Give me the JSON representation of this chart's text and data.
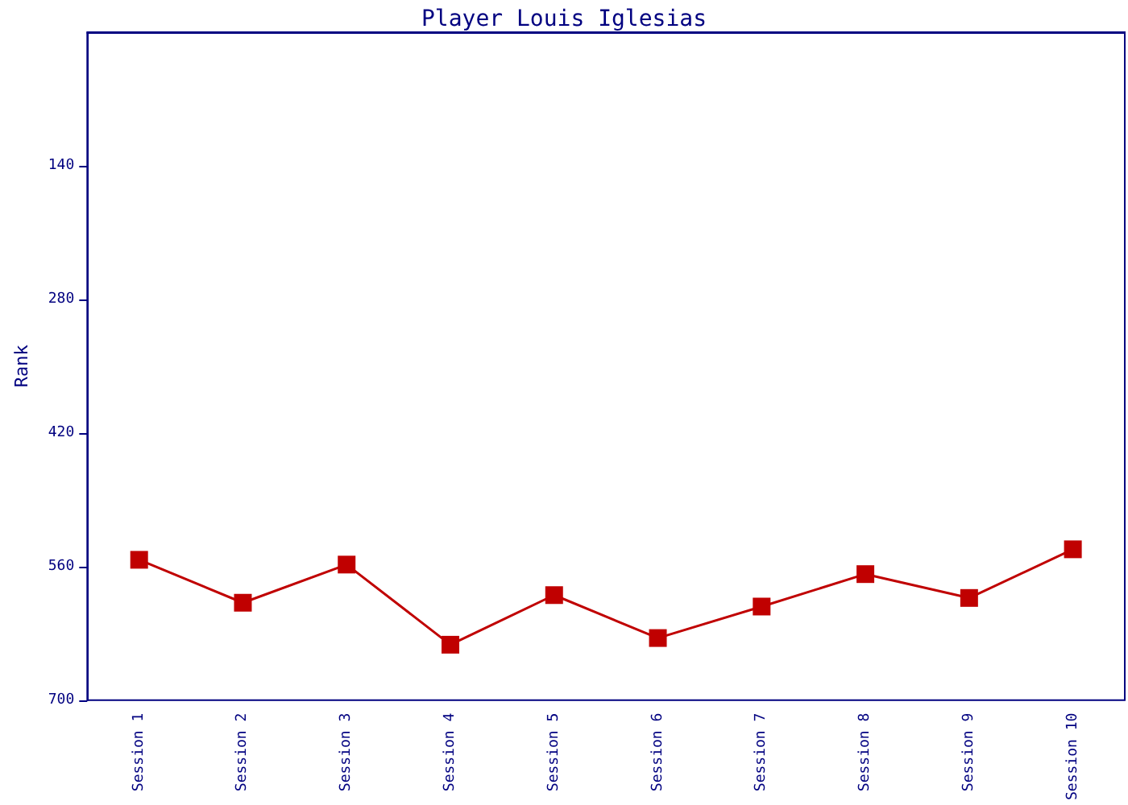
{
  "chart_data": {
    "type": "line",
    "title": "Player Louis Iglesias",
    "ylabel": "Rank",
    "categories": [
      "Session 1",
      "Session 2",
      "Session 3",
      "Session 4",
      "Session 5",
      "Session 6",
      "Session 7",
      "Session 8",
      "Session 9",
      "Session 10"
    ],
    "series": [
      {
        "color": "#c00000",
        "values": [
          553,
          598,
          558,
          642,
          590,
          635,
          602,
          568,
          593,
          542
        ]
      }
    ],
    "ylim": [
      700,
      0
    ],
    "yticks": [
      140,
      280,
      420,
      560,
      700
    ],
    "grid": false,
    "marker": "square",
    "line_style": "solid"
  }
}
